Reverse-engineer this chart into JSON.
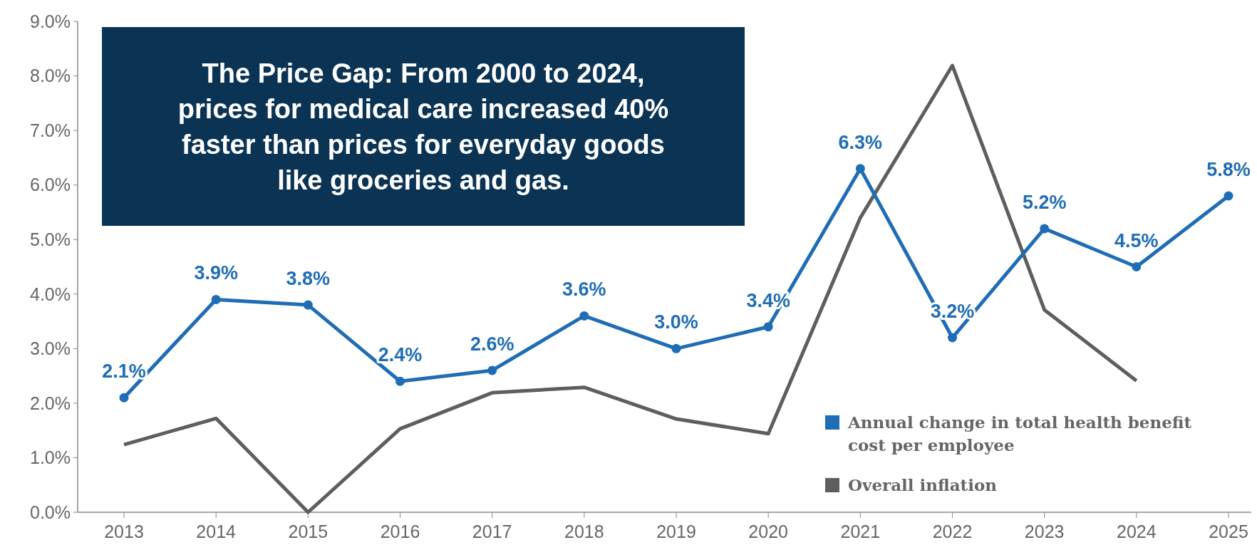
{
  "chart_data": {
    "type": "line",
    "title": "The Price Gap: From 2000 to 2024, prices for medical care increased 40% faster than prices for everyday goods like groceries and gas.",
    "categories": [
      "2013",
      "2014",
      "2015",
      "2016",
      "2017",
      "2018",
      "2019",
      "2020",
      "2021",
      "2022",
      "2023",
      "2024",
      "2025"
    ],
    "series": [
      {
        "name": "Annual change in total health benefit cost per employee",
        "color": "#1f6db5",
        "marker": "circle",
        "values": [
          2.1,
          3.9,
          3.8,
          2.4,
          2.6,
          3.6,
          3.0,
          3.4,
          6.3,
          3.2,
          5.2,
          4.5,
          5.8
        ],
        "value_labels": [
          "2.1%",
          "3.9%",
          "3.8%",
          "2.4%",
          "2.6%",
          "3.6%",
          "3.0%",
          "3.4%",
          "6.3%",
          "3.2%",
          "5.2%",
          "4.5%",
          "5.8%"
        ]
      },
      {
        "name": "Overall inflation",
        "color": "#5e5e5e",
        "marker": "none",
        "values": [
          1.24,
          1.72,
          0.0,
          1.53,
          2.19,
          2.29,
          1.71,
          1.44,
          5.4,
          8.19,
          3.71,
          2.41,
          null
        ]
      }
    ],
    "ylim": [
      0,
      9
    ],
    "yticks": [
      {
        "value": 0,
        "label": "0.0%"
      },
      {
        "value": 1,
        "label": "1.0%"
      },
      {
        "value": 2,
        "label": "2.0%"
      },
      {
        "value": 3,
        "label": "3.0%"
      },
      {
        "value": 4,
        "label": "4.0%"
      },
      {
        "value": 5,
        "label": "5.0%"
      },
      {
        "value": 6,
        "label": "6.0%"
      },
      {
        "value": 7,
        "label": "7.0%"
      },
      {
        "value": 8,
        "label": "8.0%"
      },
      {
        "value": 9,
        "label": "9.0%"
      }
    ],
    "grid": false,
    "legend": "bottom right",
    "line_style": "solid"
  }
}
